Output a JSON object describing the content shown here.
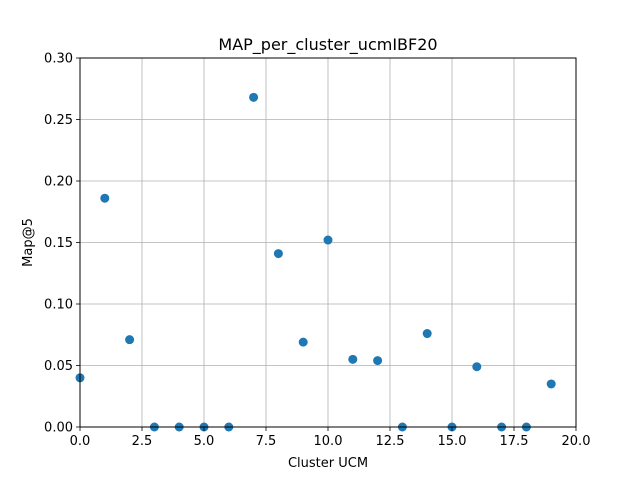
{
  "chart_data": {
    "type": "scatter",
    "title": "MAP_per_cluster_ucmIBF20",
    "xlabel": "Cluster UCM",
    "ylabel": "Map@5",
    "xlim": [
      0,
      20
    ],
    "ylim": [
      0,
      0.3
    ],
    "xticks": [
      "0.0",
      "2.5",
      "5.0",
      "7.5",
      "10.0",
      "12.5",
      "15.0",
      "17.5",
      "20.0"
    ],
    "yticks": [
      "0.00",
      "0.05",
      "0.10",
      "0.15",
      "0.20",
      "0.25",
      "0.30"
    ],
    "grid": true,
    "marker_color": "#1f77b4",
    "x": [
      0,
      1,
      2,
      3,
      4,
      5,
      6,
      7,
      8,
      9,
      10,
      11,
      12,
      13,
      14,
      15,
      16,
      17,
      18,
      19
    ],
    "y": [
      0.04,
      0.186,
      0.071,
      0.0,
      0.0,
      0.0,
      0.0,
      0.268,
      0.141,
      0.069,
      0.152,
      0.055,
      0.054,
      0.0,
      0.076,
      0.0,
      0.049,
      0.0,
      0.0,
      0.035
    ]
  }
}
